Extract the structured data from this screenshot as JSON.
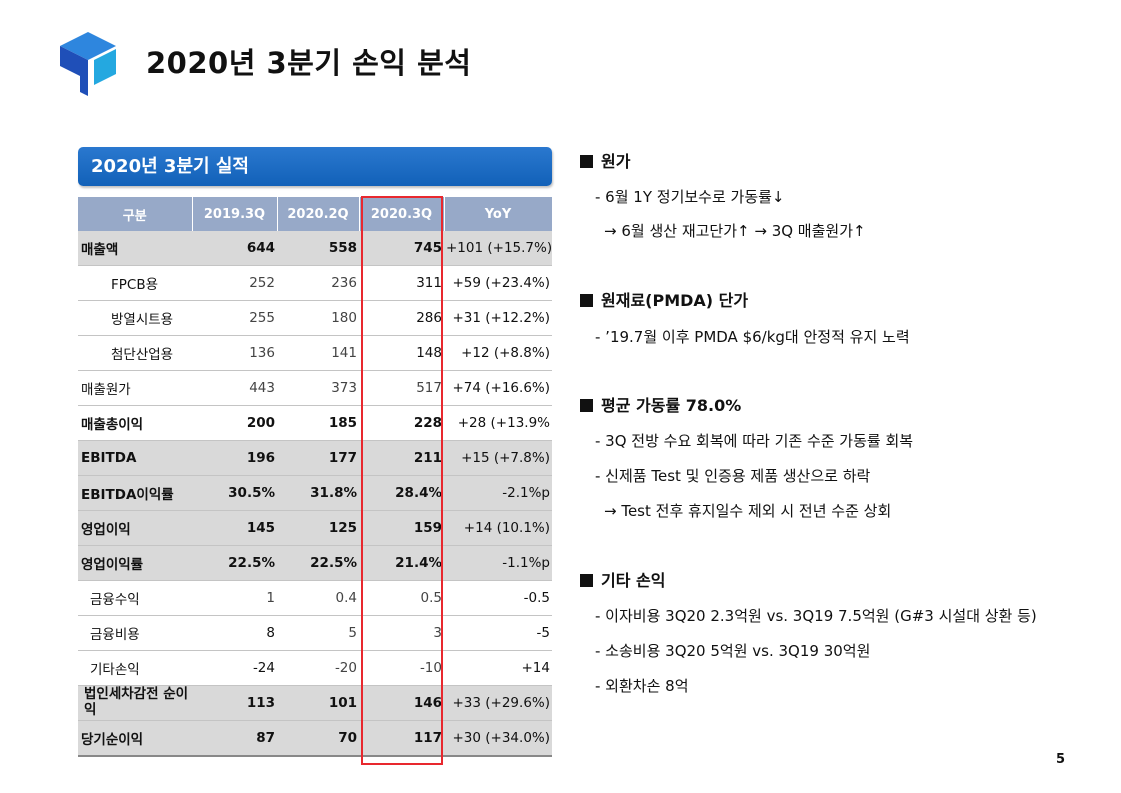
{
  "header": {
    "title": "2020년 3분기 손익 분석"
  },
  "table_section": {
    "title": "2020년 3분기 실적",
    "columns": [
      "구분",
      "2019.3Q",
      "2020.2Q",
      "2020.3Q",
      "YoY"
    ],
    "rows": [
      {
        "label": "매출액",
        "v1": "644",
        "v2": "558",
        "v3": "745",
        "yoy": "+101 (+15.7%)"
      },
      {
        "label": "FPCB용",
        "v1": "252",
        "v2": "236",
        "v3": "311",
        "yoy": "+59 (+23.4%)"
      },
      {
        "label": "방열시트용",
        "v1": "255",
        "v2": "180",
        "v3": "286",
        "yoy": "+31 (+12.2%)"
      },
      {
        "label": "첨단산업용",
        "v1": "136",
        "v2": "141",
        "v3": "148",
        "yoy": "+12 (+8.8%)"
      },
      {
        "label": "매출원가",
        "v1": "443",
        "v2": "373",
        "v3": "517",
        "yoy": "+74 (+16.6%)"
      },
      {
        "label": "매출총이익",
        "v1": "200",
        "v2": "185",
        "v3": "228",
        "yoy": "+28 (+13.9%"
      },
      {
        "label": "EBITDA",
        "v1": "196",
        "v2": "177",
        "v3": "211",
        "yoy": "+15 (+7.8%)"
      },
      {
        "label": "EBITDA이익률",
        "v1": "30.5%",
        "v2": "31.8%",
        "v3": "28.4%",
        "yoy": "-2.1%p"
      },
      {
        "label": "영업이익",
        "v1": "145",
        "v2": "125",
        "v3": "159",
        "yoy": "+14 (10.1%)"
      },
      {
        "label": "영업이익률",
        "v1": "22.5%",
        "v2": "22.5%",
        "v3": "21.4%",
        "yoy": "-1.1%p"
      },
      {
        "label": "금융수익",
        "v1": "1",
        "v2": "0.4",
        "v3": "0.5",
        "yoy": "-0.5"
      },
      {
        "label": "금융비용",
        "v1": "8",
        "v2": "5",
        "v3": "3",
        "yoy": "-5"
      },
      {
        "label": "기타손익",
        "v1": "-24",
        "v2": "-20",
        "v3": "-10",
        "yoy": "+14"
      },
      {
        "label": "법인세차감전 순이익",
        "v1": "113",
        "v2": "101",
        "v3": "146",
        "yoy": "+33 (+29.6%)"
      },
      {
        "label": "당기순이익",
        "v1": "87",
        "v2": "70",
        "v3": "117",
        "yoy": "+30 (+34.0%)"
      }
    ]
  },
  "analysis": {
    "cost": {
      "heading": "원가",
      "lines": [
        "- 6월 1Y 정기보수로 가동률↓",
        "→ 6월 생산 재고단가↑ → 3Q 매출원가↑"
      ]
    },
    "material": {
      "heading": "원재료(PMDA) 단가",
      "lines": [
        "- ’19.7월 이후 PMDA $6/kg대 안정적 유지 노력"
      ]
    },
    "utilization": {
      "heading": "평균 가동률 78.0%",
      "lines": [
        "- 3Q 전방 수요 회복에 따라 기존 수준 가동률 회복",
        "- 신제품 Test 및 인증용 제품 생산으로 하락",
        "→ Test 전후 휴지일수 제외 시 전년 수준 상회"
      ]
    },
    "other": {
      "heading": "기타 손익",
      "lines": [
        "- 이자비용 3Q20 2.3억원 vs. 3Q19 7.5억원 (G#3 시설대 상환 등)",
        "- 소송비용 3Q20 5억원 vs. 3Q19 30억원",
        "- 외환차손 8억"
      ]
    }
  },
  "footer": {
    "page_number": "5"
  },
  "colors": {
    "accent_blue": "#1a6bc2",
    "header_gray_blue": "#97a9c8",
    "highlight_red": "#e8282e",
    "row_gray": "#d9d9d9"
  }
}
